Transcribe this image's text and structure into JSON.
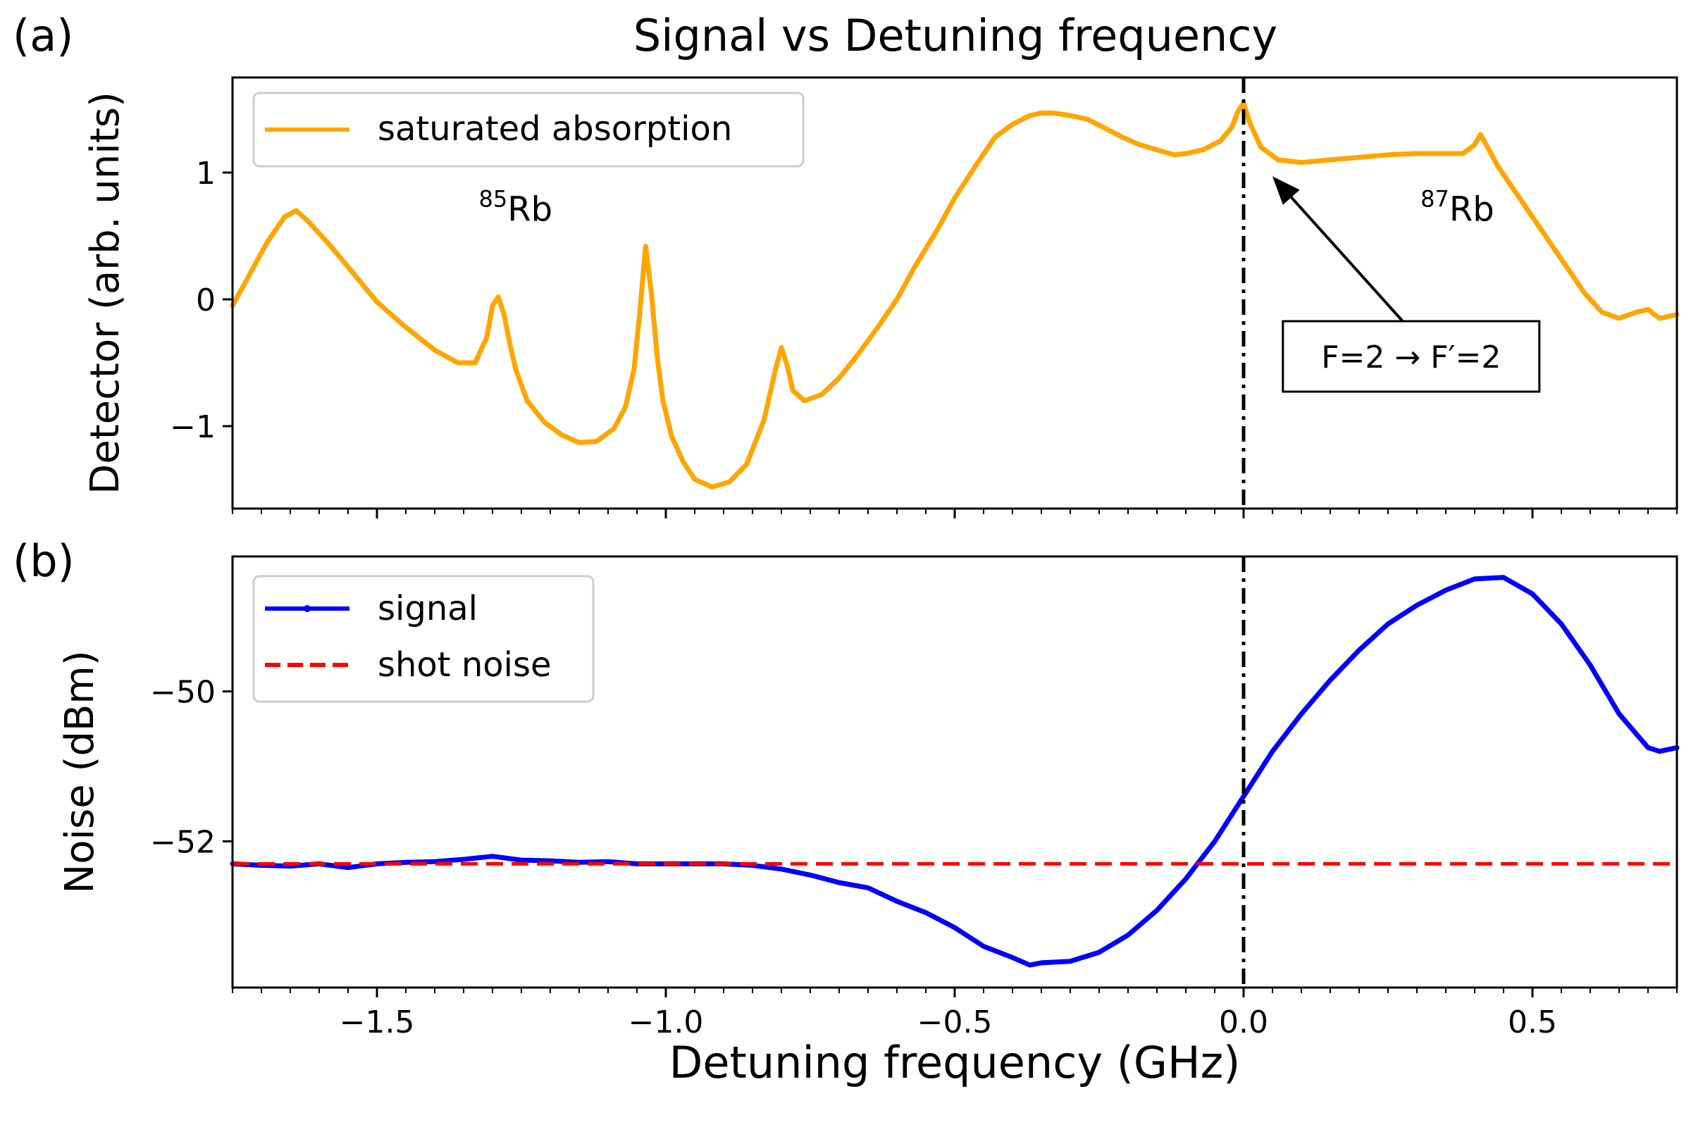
{
  "figure": {
    "title": "Signal vs Detuning frequency",
    "xlabel": "Detuning frequency (GHz)"
  },
  "chart_data": [
    {
      "panel_label": "(a)",
      "type": "line",
      "ylabel": "Detector (arb. units)",
      "xlim": [
        -1.75,
        0.75
      ],
      "ylim": [
        -1.65,
        1.75
      ],
      "yticks": [
        -1,
        0,
        1
      ],
      "ytick_labels": [
        "−1",
        "0",
        "1"
      ],
      "legend": "upper left",
      "vline_x": 0.0,
      "series": [
        {
          "name": "saturated absorption",
          "color": "#ffa500",
          "x": [
            -1.75,
            -1.72,
            -1.69,
            -1.66,
            -1.64,
            -1.62,
            -1.58,
            -1.54,
            -1.5,
            -1.45,
            -1.4,
            -1.36,
            -1.33,
            -1.31,
            -1.3,
            -1.29,
            -1.28,
            -1.27,
            -1.26,
            -1.24,
            -1.21,
            -1.18,
            -1.15,
            -1.12,
            -1.09,
            -1.07,
            -1.055,
            -1.045,
            -1.035,
            -1.025,
            -1.015,
            -1.005,
            -0.99,
            -0.97,
            -0.95,
            -0.92,
            -0.89,
            -0.86,
            -0.83,
            -0.81,
            -0.8,
            -0.79,
            -0.78,
            -0.76,
            -0.73,
            -0.7,
            -0.67,
            -0.63,
            -0.6,
            -0.57,
            -0.53,
            -0.5,
            -0.46,
            -0.43,
            -0.4,
            -0.37,
            -0.35,
            -0.33,
            -0.3,
            -0.27,
            -0.24,
            -0.21,
            -0.18,
            -0.15,
            -0.12,
            -0.1,
            -0.07,
            -0.04,
            -0.02,
            -0.01,
            0.0,
            0.01,
            0.03,
            0.06,
            0.1,
            0.15,
            0.2,
            0.25,
            0.3,
            0.35,
            0.38,
            0.4,
            0.41,
            0.42,
            0.44,
            0.47,
            0.5,
            0.53,
            0.56,
            0.59,
            0.62,
            0.65,
            0.68,
            0.7,
            0.72,
            0.74,
            0.75
          ],
          "y": [
            -0.05,
            0.2,
            0.45,
            0.65,
            0.7,
            0.62,
            0.42,
            0.2,
            -0.02,
            -0.22,
            -0.4,
            -0.5,
            -0.5,
            -0.3,
            -0.05,
            0.02,
            -0.12,
            -0.35,
            -0.55,
            -0.8,
            -0.97,
            -1.07,
            -1.13,
            -1.12,
            -1.02,
            -0.85,
            -0.55,
            -0.1,
            0.42,
            0.05,
            -0.45,
            -0.8,
            -1.08,
            -1.28,
            -1.42,
            -1.48,
            -1.44,
            -1.3,
            -0.95,
            -0.55,
            -0.38,
            -0.52,
            -0.72,
            -0.8,
            -0.75,
            -0.62,
            -0.45,
            -0.2,
            0.0,
            0.25,
            0.55,
            0.8,
            1.08,
            1.28,
            1.38,
            1.45,
            1.47,
            1.47,
            1.45,
            1.42,
            1.35,
            1.28,
            1.22,
            1.18,
            1.14,
            1.15,
            1.18,
            1.25,
            1.36,
            1.48,
            1.55,
            1.4,
            1.2,
            1.1,
            1.08,
            1.1,
            1.12,
            1.14,
            1.15,
            1.15,
            1.15,
            1.22,
            1.3,
            1.22,
            1.05,
            0.85,
            0.65,
            0.45,
            0.25,
            0.05,
            -0.1,
            -0.15,
            -0.1,
            -0.08,
            -0.15,
            -0.13,
            -0.12
          ]
        }
      ],
      "annotations": [
        {
          "text": "Rb",
          "superscript": "85",
          "x": -1.26,
          "y": 0.62
        },
        {
          "text": "Rb",
          "superscript": "87",
          "x": 0.37,
          "y": 0.62
        }
      ],
      "arrow_annotation": {
        "text": "F=2 → F′=2",
        "text_x": 0.29,
        "text_y": -0.45,
        "arrow_tip_x": 0.05,
        "arrow_tip_y": 0.97
      }
    },
    {
      "panel_label": "(b)",
      "type": "line",
      "ylabel": "Noise (dBm)",
      "xlim": [
        -1.75,
        0.75
      ],
      "ylim": [
        -53.95,
        -48.2
      ],
      "yticks": [
        -52,
        -50
      ],
      "ytick_labels": [
        "−52",
        "−50"
      ],
      "xticks": [
        -1.5,
        -1.0,
        -0.5,
        0.0,
        0.5
      ],
      "xtick_labels": [
        "−1.5",
        "−1.0",
        "−0.5",
        "0.0",
        "0.5"
      ],
      "legend": "upper left",
      "vline_x": 0.0,
      "series": [
        {
          "name": "signal",
          "color": "#0000ff",
          "x": [
            -1.75,
            -1.7,
            -1.65,
            -1.6,
            -1.55,
            -1.5,
            -1.45,
            -1.4,
            -1.35,
            -1.3,
            -1.25,
            -1.2,
            -1.15,
            -1.1,
            -1.05,
            -1.0,
            -0.95,
            -0.9,
            -0.85,
            -0.8,
            -0.75,
            -0.7,
            -0.65,
            -0.6,
            -0.55,
            -0.5,
            -0.45,
            -0.4,
            -0.37,
            -0.35,
            -0.3,
            -0.25,
            -0.2,
            -0.15,
            -0.1,
            -0.05,
            0.0,
            0.05,
            0.1,
            0.15,
            0.2,
            0.25,
            0.3,
            0.35,
            0.4,
            0.45,
            0.5,
            0.55,
            0.6,
            0.65,
            0.7,
            0.72,
            0.75
          ],
          "y": [
            -52.3,
            -52.32,
            -52.33,
            -52.3,
            -52.35,
            -52.3,
            -52.28,
            -52.27,
            -52.24,
            -52.2,
            -52.25,
            -52.26,
            -52.28,
            -52.27,
            -52.3,
            -52.3,
            -52.3,
            -52.3,
            -52.32,
            -52.37,
            -52.45,
            -52.55,
            -52.62,
            -52.8,
            -52.95,
            -53.15,
            -53.4,
            -53.55,
            -53.65,
            -53.62,
            -53.6,
            -53.48,
            -53.25,
            -52.92,
            -52.5,
            -52.0,
            -51.4,
            -50.8,
            -50.3,
            -49.85,
            -49.45,
            -49.1,
            -48.85,
            -48.65,
            -48.5,
            -48.48,
            -48.7,
            -49.1,
            -49.65,
            -50.3,
            -50.75,
            -50.8,
            -50.75
          ]
        },
        {
          "name": "shot noise",
          "color": "#ff0000",
          "style": "dashed",
          "x": [
            -1.75,
            0.75
          ],
          "y": [
            -52.3,
            -52.3
          ]
        }
      ]
    }
  ]
}
